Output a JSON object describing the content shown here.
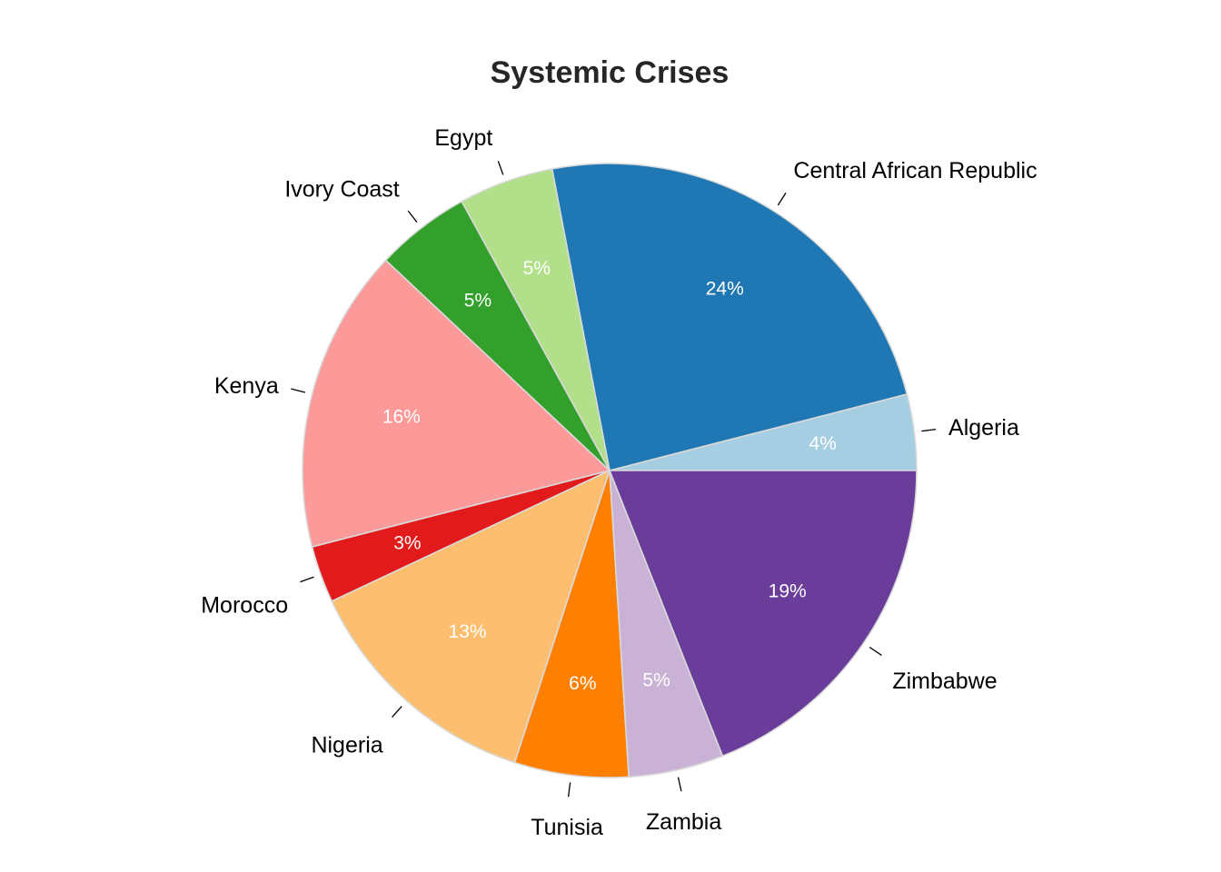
{
  "chart_data": {
    "type": "pie",
    "title": "Systemic Crises",
    "start_angle_deg": 0,
    "direction": "counterclockwise",
    "slices": [
      {
        "label": "Algeria",
        "value": 4,
        "pct_label": "4%",
        "color": "#A6CEE3"
      },
      {
        "label": "Central African Republic",
        "value": 24,
        "pct_label": "24%",
        "color": "#1F78B4"
      },
      {
        "label": "Egypt",
        "value": 5,
        "pct_label": "5%",
        "color": "#B2DF8A"
      },
      {
        "label": "Ivory Coast",
        "value": 5,
        "pct_label": "5%",
        "color": "#33A02C"
      },
      {
        "label": "Kenya",
        "value": 16,
        "pct_label": "16%",
        "color": "#FB9A99"
      },
      {
        "label": "Morocco",
        "value": 3,
        "pct_label": "3%",
        "color": "#E31A1C"
      },
      {
        "label": "Nigeria",
        "value": 13,
        "pct_label": "13%",
        "color": "#FDBF6F"
      },
      {
        "label": "Tunisia",
        "value": 6,
        "pct_label": "6%",
        "color": "#FF7F00"
      },
      {
        "label": "Zambia",
        "value": 5,
        "pct_label": "5%",
        "color": "#CAB2D6"
      },
      {
        "label": "Zimbabwe",
        "value": 19,
        "pct_label": "19%",
        "color": "#6A3D9A"
      }
    ]
  }
}
